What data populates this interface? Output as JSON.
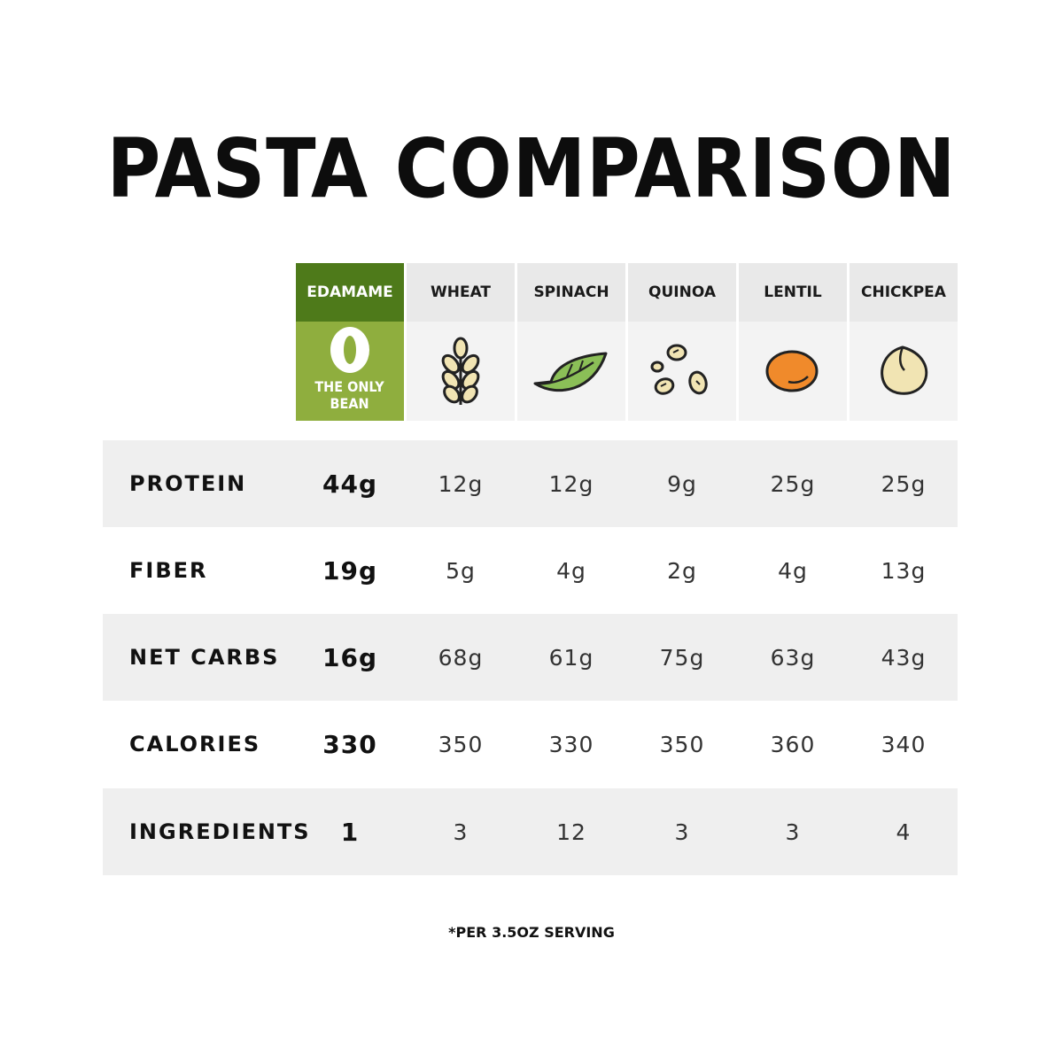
{
  "title": "PASTA COMPARISON",
  "footnote": "*PER 3.5OZ SERVING",
  "colors": {
    "featured_header": "#4e7a1a",
    "featured_body": "#8fae3e",
    "header_bg": "#e9e9e9",
    "row_shade": "#efefef"
  },
  "chart_data": {
    "type": "table",
    "columns": [
      {
        "name": "EDAMAME",
        "badge": [
          "THE ONLY",
          "BEAN"
        ],
        "icon": "bean-icon",
        "featured": true
      },
      {
        "name": "WHEAT",
        "icon": "wheat-icon"
      },
      {
        "name": "SPINACH",
        "icon": "spinach-leaf-icon"
      },
      {
        "name": "QUINOA",
        "icon": "quinoa-seeds-icon"
      },
      {
        "name": "LENTIL",
        "icon": "lentil-icon"
      },
      {
        "name": "CHICKPEA",
        "icon": "chickpea-icon"
      }
    ],
    "rows": [
      {
        "label": "PROTEIN",
        "values": [
          "44g",
          "12g",
          "12g",
          "9g",
          "25g",
          "25g"
        ]
      },
      {
        "label": "FIBER",
        "values": [
          "19g",
          "5g",
          "4g",
          "2g",
          "4g",
          "13g"
        ]
      },
      {
        "label": "NET CARBS",
        "values": [
          "16g",
          "68g",
          "61g",
          "75g",
          "63g",
          "43g"
        ]
      },
      {
        "label": "CALORIES",
        "values": [
          "330",
          "350",
          "330",
          "350",
          "360",
          "340"
        ]
      },
      {
        "label": "INGREDIENTS",
        "values": [
          "1",
          "3",
          "12",
          "3",
          "3",
          "4"
        ]
      }
    ]
  }
}
